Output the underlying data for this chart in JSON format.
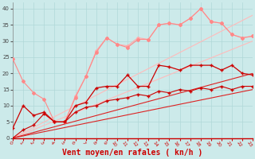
{
  "background_color": "#cceaea",
  "grid_color": "#aacccc",
  "xlabel": "Vent moyen/en rafales ( kn/h )",
  "xlabel_color": "#cc0000",
  "xlabel_fontsize": 7,
  "yticks": [
    0,
    5,
    10,
    15,
    20,
    25,
    30,
    35,
    40
  ],
  "xticks": [
    0,
    1,
    2,
    3,
    4,
    5,
    6,
    7,
    8,
    9,
    10,
    11,
    12,
    13,
    14,
    15,
    16,
    17,
    18,
    19,
    20,
    21,
    22,
    23
  ],
  "ylim": [
    0,
    42
  ],
  "xlim": [
    0,
    23
  ],
  "series": [
    {
      "name": "linear_pale1",
      "x": [
        0,
        23
      ],
      "y": [
        0,
        30
      ],
      "color": "#ffbbbb",
      "linewidth": 0.8,
      "marker": null,
      "markersize": 0,
      "alpha": 1.0,
      "linestyle": "-"
    },
    {
      "name": "linear_pale2",
      "x": [
        0,
        23
      ],
      "y": [
        0,
        38
      ],
      "color": "#ffbbbb",
      "linewidth": 0.8,
      "marker": null,
      "markersize": 0,
      "alpha": 1.0,
      "linestyle": "-"
    },
    {
      "name": "pink_marker_upper",
      "x": [
        0,
        1,
        2,
        3,
        4,
        5,
        6,
        7,
        8,
        9,
        10,
        11,
        12,
        13,
        14,
        15,
        16,
        17,
        18,
        19,
        20,
        21,
        22,
        23
      ],
      "y": [
        null,
        null,
        null,
        null,
        null,
        5.0,
        13.0,
        19.0,
        27.0,
        31.0,
        29.0,
        28.5,
        31.0,
        30.5,
        35.0,
        35.5,
        35.0,
        37.0,
        40.0,
        36.0,
        35.5,
        32.0,
        31.0,
        31.5
      ],
      "color": "#ffaaaa",
      "linewidth": 0.8,
      "marker": "D",
      "markersize": 2,
      "alpha": 1.0,
      "linestyle": "-",
      "start_x": 5
    },
    {
      "name": "pink_jagged",
      "x": [
        0,
        1,
        2,
        3,
        4,
        5,
        6,
        7,
        8,
        9,
        10,
        11,
        12,
        13,
        14,
        15,
        16,
        17,
        18,
        19,
        20,
        21,
        22,
        23
      ],
      "y": [
        24.5,
        17.5,
        14.0,
        12.0,
        5.0,
        5.0,
        12.5,
        19.0,
        26.5,
        31.0,
        29.0,
        28.0,
        30.5,
        30.5,
        35.0,
        35.5,
        35.0,
        37.0,
        40.0,
        36.0,
        35.5,
        32.0,
        31.0,
        31.5
      ],
      "color": "#ff8888",
      "linewidth": 0.8,
      "marker": "D",
      "markersize": 2,
      "alpha": 1.0,
      "linestyle": "-"
    },
    {
      "name": "linear_red1",
      "x": [
        0,
        23
      ],
      "y": [
        0,
        15
      ],
      "color": "#dd2222",
      "linewidth": 0.8,
      "marker": null,
      "markersize": 0,
      "alpha": 1.0,
      "linestyle": "-"
    },
    {
      "name": "linear_red2",
      "x": [
        0,
        23
      ],
      "y": [
        0,
        20
      ],
      "color": "#dd2222",
      "linewidth": 0.8,
      "marker": null,
      "markersize": 0,
      "alpha": 1.0,
      "linestyle": "-"
    },
    {
      "name": "red_marker_main",
      "x": [
        0,
        1,
        2,
        3,
        4,
        5,
        6,
        7,
        8,
        9,
        10,
        11,
        12,
        13,
        14,
        15,
        16,
        17,
        18,
        19,
        20,
        21,
        22,
        23
      ],
      "y": [
        3.0,
        10.0,
        7.0,
        8.0,
        5.0,
        5.0,
        10.0,
        11.0,
        15.5,
        16.0,
        16.0,
        19.5,
        16.0,
        16.0,
        22.5,
        22.0,
        21.0,
        22.5,
        22.5,
        22.5,
        21.0,
        22.5,
        20.0,
        19.5
      ],
      "color": "#cc0000",
      "linewidth": 0.9,
      "marker": "+",
      "markersize": 3,
      "alpha": 1.0,
      "linestyle": "-"
    },
    {
      "name": "red_lower_marker",
      "x": [
        0,
        1,
        2,
        3,
        4,
        5,
        6,
        7,
        8,
        9,
        10,
        11,
        12,
        13,
        14,
        15,
        16,
        17,
        18,
        19,
        20,
        21,
        22,
        23
      ],
      "y": [
        0,
        2.5,
        4.0,
        7.5,
        5.0,
        5.0,
        8.0,
        9.5,
        10.0,
        11.5,
        12.0,
        12.5,
        13.5,
        13.0,
        14.5,
        14.0,
        15.0,
        14.5,
        15.5,
        15.0,
        16.0,
        15.0,
        16.0,
        16.0
      ],
      "color": "#cc0000",
      "linewidth": 0.8,
      "marker": "+",
      "markersize": 2.5,
      "alpha": 1.0,
      "linestyle": "-"
    }
  ]
}
